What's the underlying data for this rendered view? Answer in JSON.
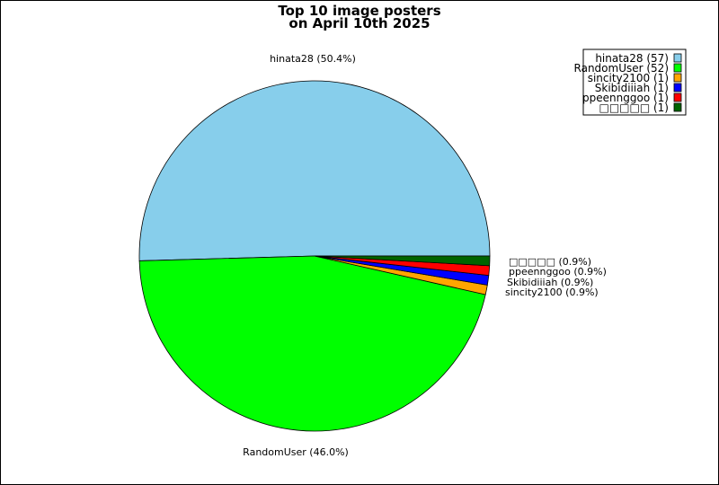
{
  "chart_data": {
    "type": "pie",
    "title": "Top 10 image posters",
    "subtitle": "on April 10th 2025",
    "categories": [
      "hinata28",
      "RandomUser",
      "sincity2100",
      "Skibidiiiah",
      "ppeennggoo",
      "□□□□□"
    ],
    "values": [
      57,
      52,
      1,
      1,
      1,
      1
    ],
    "percent_labels": [
      "hinata28 (50.4%)",
      "RandomUser (46.0%)",
      "sincity2100 (0.9%)",
      "Skibidiiiah (0.9%)",
      "ppeennggoo (0.9%)",
      "□□□□□ (0.9%)"
    ],
    "legend_labels": [
      "hinata28 (57)",
      "RandomUser (52)",
      "sincity2100 (1)",
      "Skibidiiiah (1)",
      "ppeennggoo (1)",
      "□□□□□ (1)"
    ],
    "colors": [
      "#87ceeb",
      "#00ff00",
      "#ffa500",
      "#0000ff",
      "#ff0000",
      "#006400"
    ],
    "legend_placement": "top-right",
    "grid": false
  }
}
